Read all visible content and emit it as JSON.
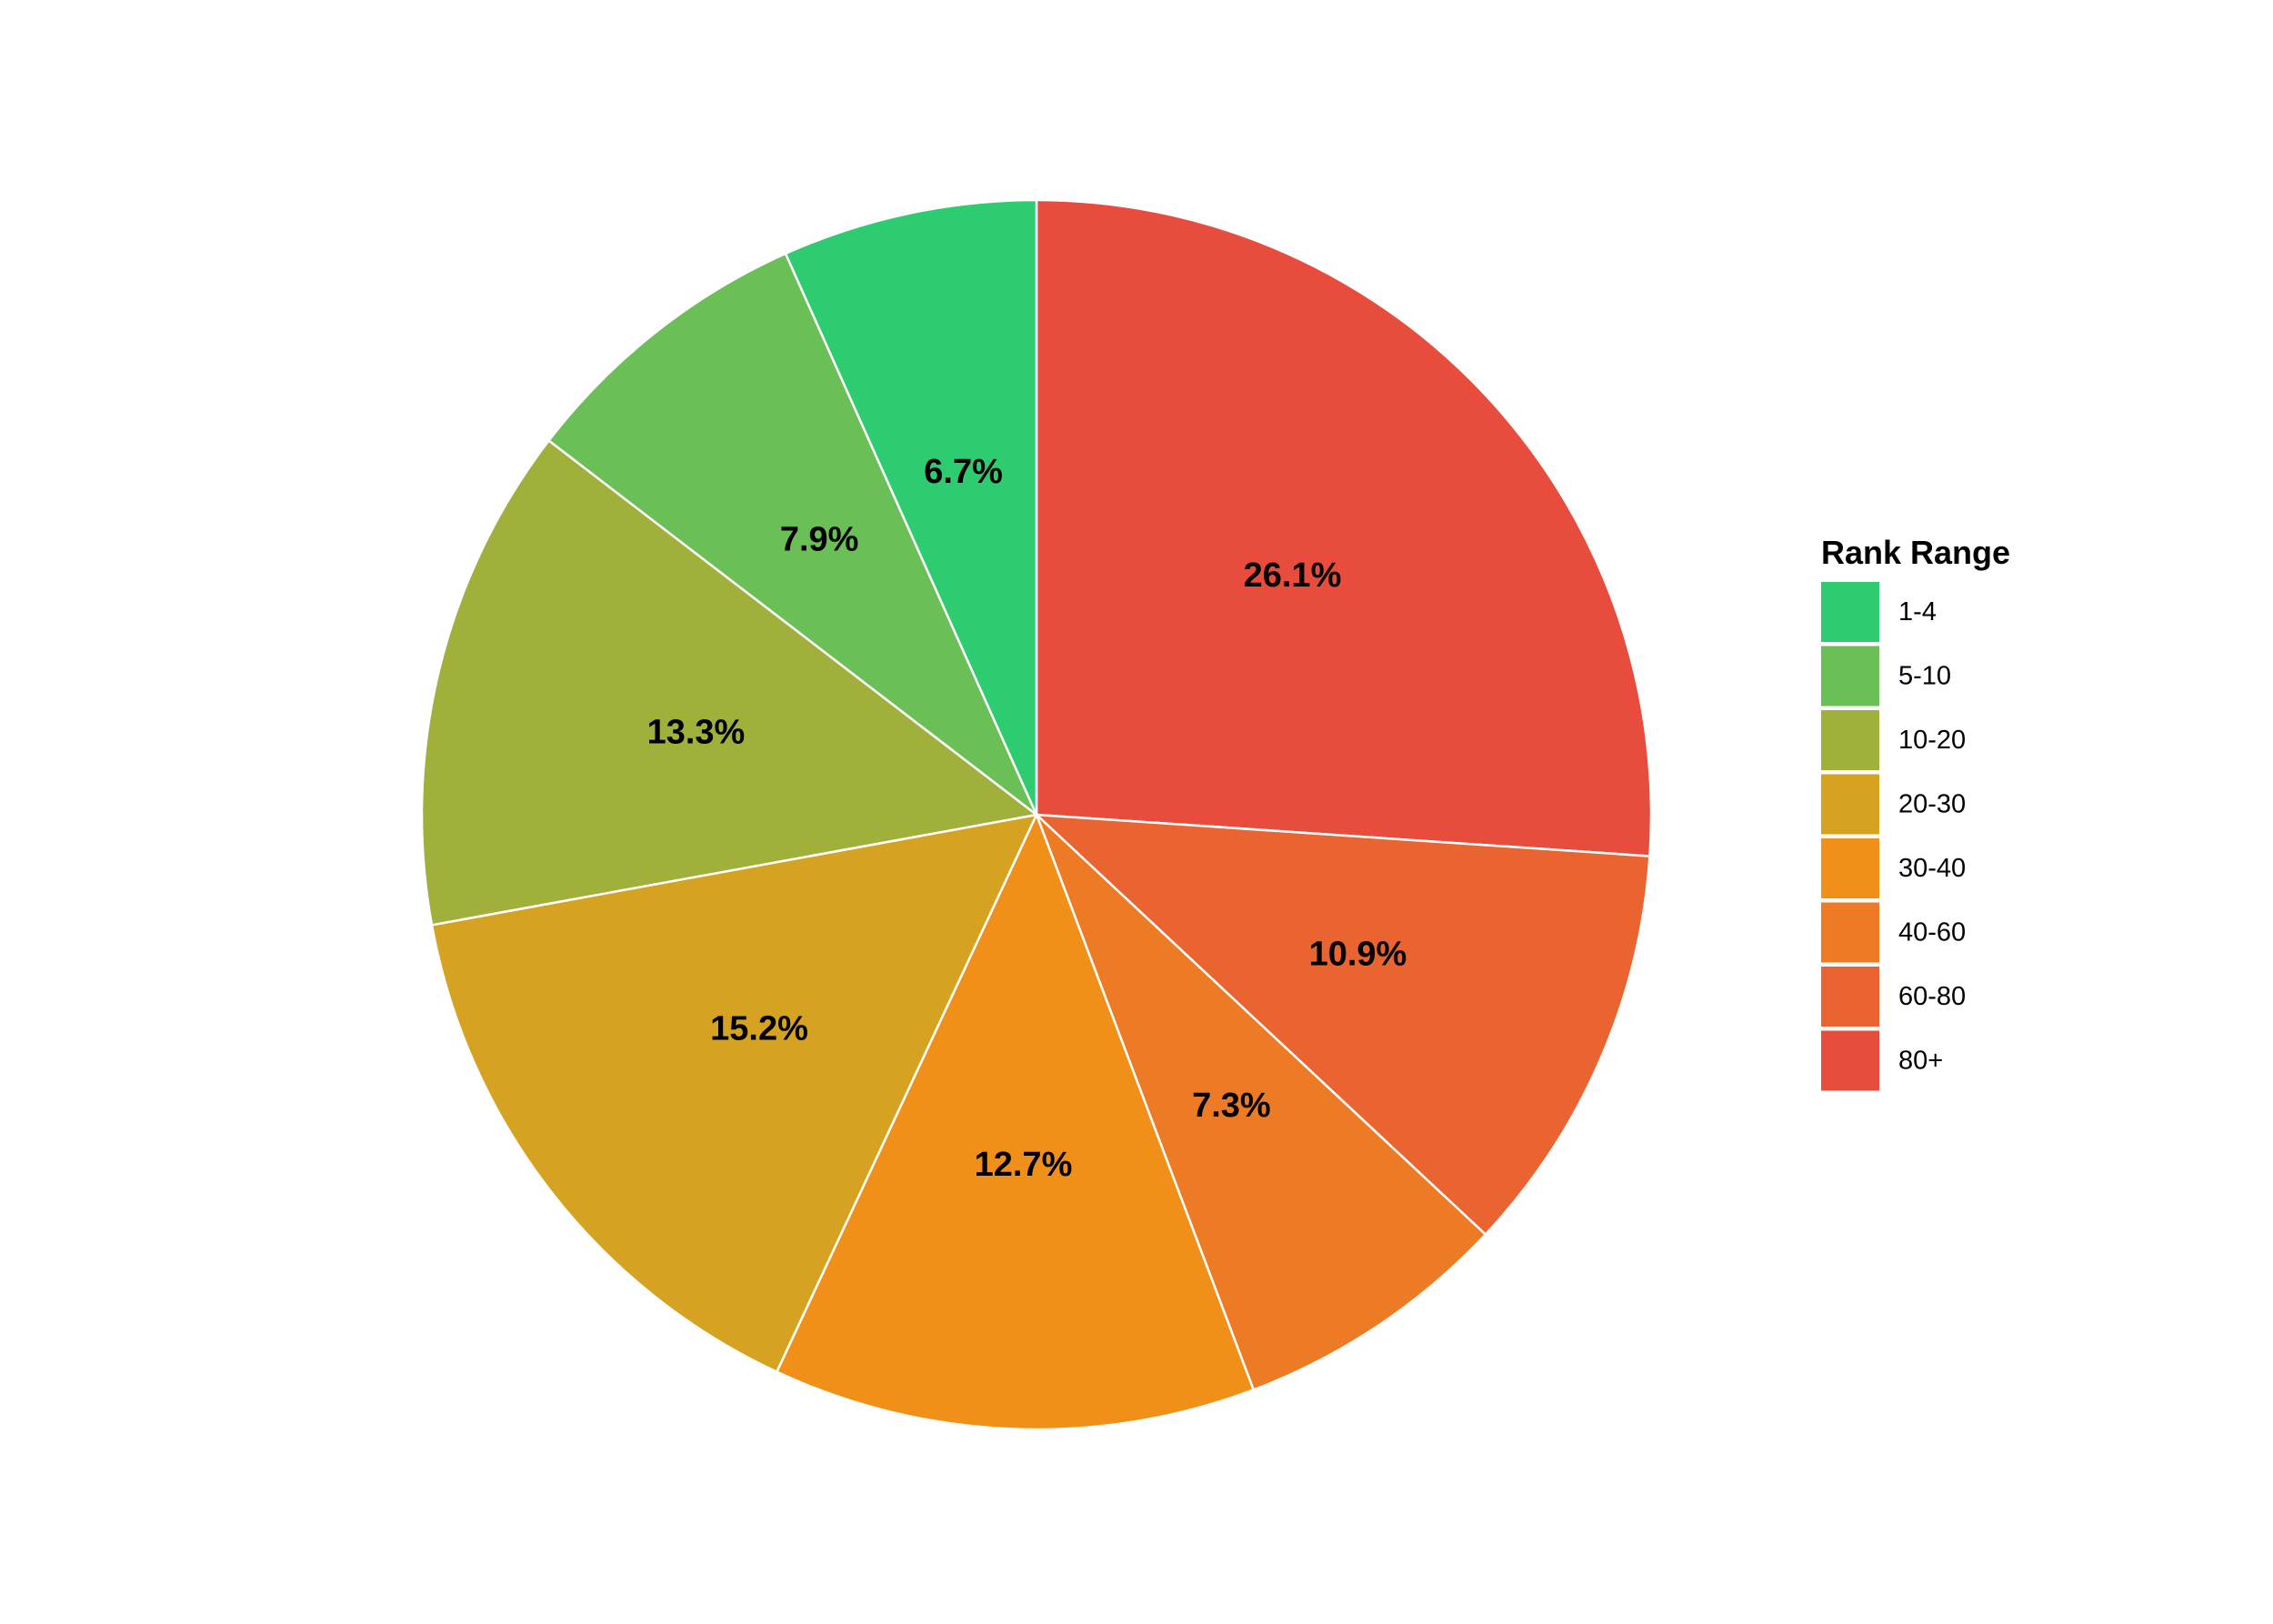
{
  "chart_data": {
    "type": "pie",
    "title": "",
    "legend_title": "Rank Range",
    "legend_position": "right",
    "start_angle": "12 o'clock",
    "direction": "clockwise, drawn from the last legend entry (80+) to the first (1-4)",
    "slices": [
      {
        "label": "1-4",
        "value": 6.7,
        "display": "6.7%",
        "color": "#2ecc71"
      },
      {
        "label": "5-10",
        "value": 7.9,
        "display": "7.9%",
        "color": "#6abf56"
      },
      {
        "label": "10-20",
        "value": 13.3,
        "display": "13.3%",
        "color": "#a0b03b"
      },
      {
        "label": "20-30",
        "value": 15.2,
        "display": "15.2%",
        "color": "#d6a221"
      },
      {
        "label": "30-40",
        "value": 12.7,
        "display": "12.7%",
        "color": "#f09019"
      },
      {
        "label": "40-60",
        "value": 7.3,
        "display": "7.3%",
        "color": "#ed7a24"
      },
      {
        "label": "60-80",
        "value": 10.9,
        "display": "10.9%",
        "color": "#e96431"
      },
      {
        "label": "80+",
        "value": 26.1,
        "display": "26.1%",
        "color": "#e74c3c"
      }
    ]
  }
}
